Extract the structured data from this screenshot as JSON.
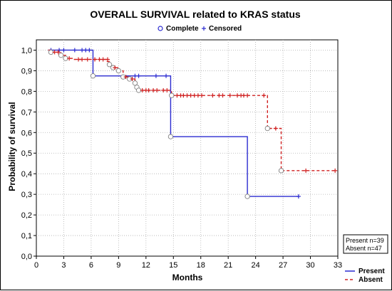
{
  "chart_data": {
    "type": "line",
    "title": "OVERALL SURVIVAL related to KRAS status",
    "xlabel": "Months",
    "ylabel": "Probability of survival",
    "xlim": [
      0,
      33
    ],
    "ylim": [
      0,
      1.05
    ],
    "x_ticks": [
      "0",
      "3",
      "6",
      "9",
      "12",
      "15",
      "18",
      "21",
      "24",
      "27",
      "30",
      "33"
    ],
    "y_ticks": [
      "0,0",
      "0,1",
      "0,2",
      "0,3",
      "0,4",
      "0,5",
      "0,6",
      "0,7",
      "0,8",
      "0,9",
      "1,0"
    ],
    "grid": true,
    "marker_legend": [
      {
        "label": "Complete",
        "marker": "circle"
      },
      {
        "label": "Censored",
        "marker": "plus"
      }
    ],
    "series_legend_position": "bottom-right",
    "note": [
      "Present n=39",
      "Absent n=47"
    ],
    "series": [
      {
        "name": "Present",
        "color": "#2b2bd0",
        "dash": "solid",
        "steps": [
          [
            1.3,
            1.0
          ],
          [
            6.2,
            0.875
          ],
          [
            14.7,
            0.58
          ],
          [
            23.1,
            0.29
          ],
          [
            28.7,
            0.29
          ]
        ],
        "complete": [
          [
            6.2,
            0.875
          ],
          [
            14.7,
            0.58
          ],
          [
            23.1,
            0.29
          ]
        ],
        "censored": [
          [
            1.6,
            1.0
          ],
          [
            2.5,
            1.0
          ],
          [
            3.0,
            1.0
          ],
          [
            4.2,
            1.0
          ],
          [
            5.0,
            1.0
          ],
          [
            5.4,
            1.0
          ],
          [
            5.8,
            1.0
          ],
          [
            10.8,
            0.875
          ],
          [
            11.2,
            0.875
          ],
          [
            13.1,
            0.875
          ],
          [
            14.2,
            0.875
          ],
          [
            28.7,
            0.29
          ]
        ]
      },
      {
        "name": "Absent",
        "color": "#d02020",
        "dash": "dashed",
        "steps": [
          [
            1.3,
            1.0
          ],
          [
            1.6,
            0.99
          ],
          [
            2.7,
            0.975
          ],
          [
            3.2,
            0.96
          ],
          [
            4.0,
            0.955
          ],
          [
            7.7,
            0.945
          ],
          [
            8.0,
            0.93
          ],
          [
            8.4,
            0.915
          ],
          [
            9.0,
            0.9
          ],
          [
            9.5,
            0.87
          ],
          [
            10.2,
            0.86
          ],
          [
            10.8,
            0.84
          ],
          [
            11.0,
            0.82
          ],
          [
            11.2,
            0.805
          ],
          [
            14.8,
            0.78
          ],
          [
            25.3,
            0.62
          ],
          [
            26.8,
            0.415
          ],
          [
            32.7,
            0.415
          ]
        ],
        "complete": [
          [
            1.6,
            0.99
          ],
          [
            2.7,
            0.975
          ],
          [
            3.2,
            0.96
          ],
          [
            8.0,
            0.93
          ],
          [
            8.4,
            0.915
          ],
          [
            9.0,
            0.9
          ],
          [
            9.5,
            0.87
          ],
          [
            10.2,
            0.86
          ],
          [
            10.8,
            0.84
          ],
          [
            11.0,
            0.82
          ],
          [
            11.2,
            0.805
          ],
          [
            14.8,
            0.78
          ],
          [
            25.3,
            0.62
          ],
          [
            26.8,
            0.415
          ]
        ],
        "censored": [
          [
            2.0,
            0.99
          ],
          [
            2.4,
            0.99
          ],
          [
            3.6,
            0.96
          ],
          [
            4.6,
            0.955
          ],
          [
            5.0,
            0.955
          ],
          [
            5.6,
            0.955
          ],
          [
            6.4,
            0.955
          ],
          [
            6.9,
            0.955
          ],
          [
            7.3,
            0.955
          ],
          [
            7.8,
            0.955
          ],
          [
            8.6,
            0.915
          ],
          [
            9.8,
            0.87
          ],
          [
            10.5,
            0.86
          ],
          [
            11.6,
            0.805
          ],
          [
            12.0,
            0.805
          ],
          [
            12.3,
            0.805
          ],
          [
            12.8,
            0.805
          ],
          [
            13.2,
            0.805
          ],
          [
            13.9,
            0.805
          ],
          [
            14.3,
            0.805
          ],
          [
            15.4,
            0.78
          ],
          [
            15.8,
            0.78
          ],
          [
            16.1,
            0.78
          ],
          [
            16.5,
            0.78
          ],
          [
            16.9,
            0.78
          ],
          [
            17.3,
            0.78
          ],
          [
            17.7,
            0.78
          ],
          [
            18.1,
            0.78
          ],
          [
            19.3,
            0.78
          ],
          [
            20.0,
            0.78
          ],
          [
            20.4,
            0.78
          ],
          [
            21.2,
            0.78
          ],
          [
            22.0,
            0.78
          ],
          [
            22.4,
            0.78
          ],
          [
            22.7,
            0.78
          ],
          [
            23.1,
            0.78
          ],
          [
            24.9,
            0.78
          ],
          [
            26.2,
            0.62
          ],
          [
            29.5,
            0.415
          ],
          [
            32.7,
            0.415
          ]
        ]
      }
    ]
  }
}
